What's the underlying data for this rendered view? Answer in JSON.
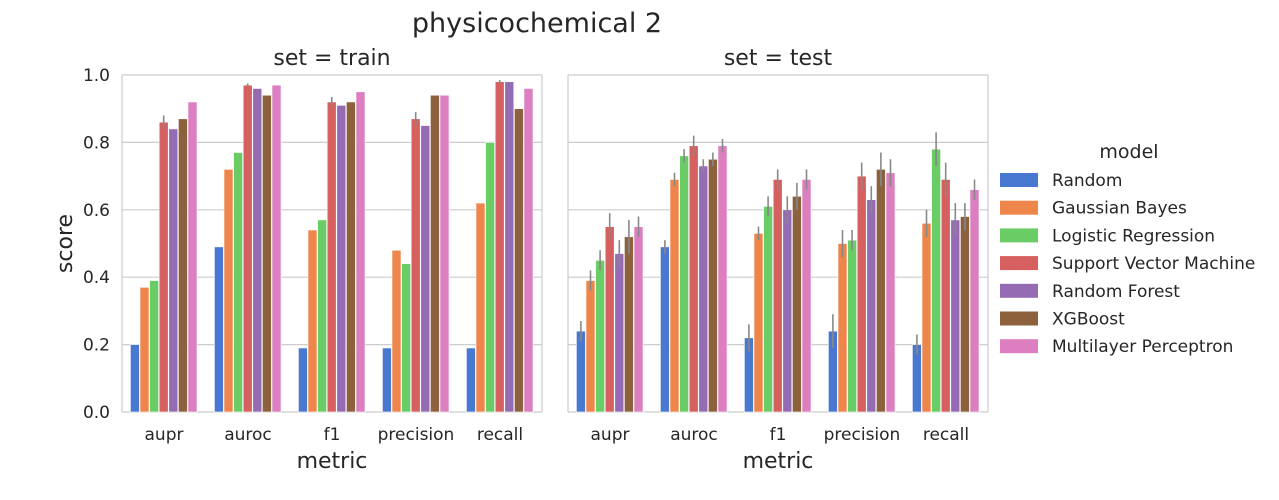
{
  "figure": {
    "title": "physicochemical 2"
  },
  "legend": {
    "title": "model"
  },
  "colors": {
    "Random": "#4878d0",
    "Gaussian Bayes": "#ee854a",
    "Logistic Regression": "#6acc64",
    "Support Vector Machine": "#d65f5f",
    "Random Forest": "#956cb4",
    "XGBoost": "#8c613c",
    "Multilayer Perceptron": "#dc7ec0",
    "grid": "#cccccc",
    "errorbar": "#888888"
  },
  "chart_data": [
    {
      "type": "bar",
      "title": "set = train",
      "xlabel": "metric",
      "ylabel": "score",
      "ylim": [
        0,
        1.0
      ],
      "yticks": [
        "0.0",
        "0.2",
        "0.4",
        "0.6",
        "0.8",
        "1.0"
      ],
      "grid": "horizontal",
      "categories": [
        "aupr",
        "auroc",
        "f1",
        "precision",
        "recall"
      ],
      "series": [
        {
          "name": "Random",
          "values": [
            0.2,
            0.49,
            0.19,
            0.19,
            0.19
          ],
          "err": [
            0,
            0,
            0,
            0,
            0
          ]
        },
        {
          "name": "Gaussian Bayes",
          "values": [
            0.37,
            0.72,
            0.54,
            0.48,
            0.62
          ],
          "err": [
            0,
            0,
            0,
            0,
            0
          ]
        },
        {
          "name": "Logistic Regression",
          "values": [
            0.39,
            0.77,
            0.57,
            0.44,
            0.8
          ],
          "err": [
            0,
            0,
            0,
            0,
            0
          ]
        },
        {
          "name": "Support Vector Machine",
          "values": [
            0.86,
            0.97,
            0.92,
            0.87,
            0.98
          ],
          "err": [
            0.02,
            0.005,
            0.015,
            0.02,
            0.005
          ]
        },
        {
          "name": "Random Forest",
          "values": [
            0.84,
            0.96,
            0.91,
            0.85,
            0.98
          ],
          "err": [
            0,
            0,
            0,
            0,
            0
          ]
        },
        {
          "name": "XGBoost",
          "values": [
            0.87,
            0.94,
            0.92,
            0.94,
            0.9
          ],
          "err": [
            0,
            0,
            0,
            0,
            0
          ]
        },
        {
          "name": "Multilayer Perceptron",
          "values": [
            0.92,
            0.97,
            0.95,
            0.94,
            0.96
          ],
          "err": [
            0,
            0,
            0,
            0,
            0
          ]
        }
      ]
    },
    {
      "type": "bar",
      "title": "set = test",
      "xlabel": "metric",
      "ylabel": "",
      "ylim": [
        0,
        1.0
      ],
      "grid": "horizontal",
      "categories": [
        "aupr",
        "auroc",
        "f1",
        "precision",
        "recall"
      ],
      "series": [
        {
          "name": "Random",
          "values": [
            0.24,
            0.49,
            0.22,
            0.24,
            0.2
          ],
          "err": [
            0.03,
            0.02,
            0.04,
            0.05,
            0.03
          ]
        },
        {
          "name": "Gaussian Bayes",
          "values": [
            0.39,
            0.69,
            0.53,
            0.5,
            0.56
          ],
          "err": [
            0.03,
            0.02,
            0.02,
            0.04,
            0.04
          ]
        },
        {
          "name": "Logistic Regression",
          "values": [
            0.45,
            0.76,
            0.61,
            0.51,
            0.78
          ],
          "err": [
            0.03,
            0.02,
            0.03,
            0.03,
            0.05
          ]
        },
        {
          "name": "Support Vector Machine",
          "values": [
            0.55,
            0.79,
            0.69,
            0.7,
            0.69
          ],
          "err": [
            0.04,
            0.03,
            0.03,
            0.04,
            0.05
          ]
        },
        {
          "name": "Random Forest",
          "values": [
            0.47,
            0.73,
            0.6,
            0.63,
            0.57
          ],
          "err": [
            0.04,
            0.02,
            0.04,
            0.04,
            0.05
          ]
        },
        {
          "name": "XGBoost",
          "values": [
            0.52,
            0.75,
            0.64,
            0.72,
            0.58
          ],
          "err": [
            0.05,
            0.02,
            0.04,
            0.05,
            0.04
          ]
        },
        {
          "name": "Multilayer Perceptron",
          "values": [
            0.55,
            0.79,
            0.69,
            0.71,
            0.66
          ],
          "err": [
            0.03,
            0.02,
            0.03,
            0.04,
            0.03
          ]
        }
      ]
    }
  ]
}
